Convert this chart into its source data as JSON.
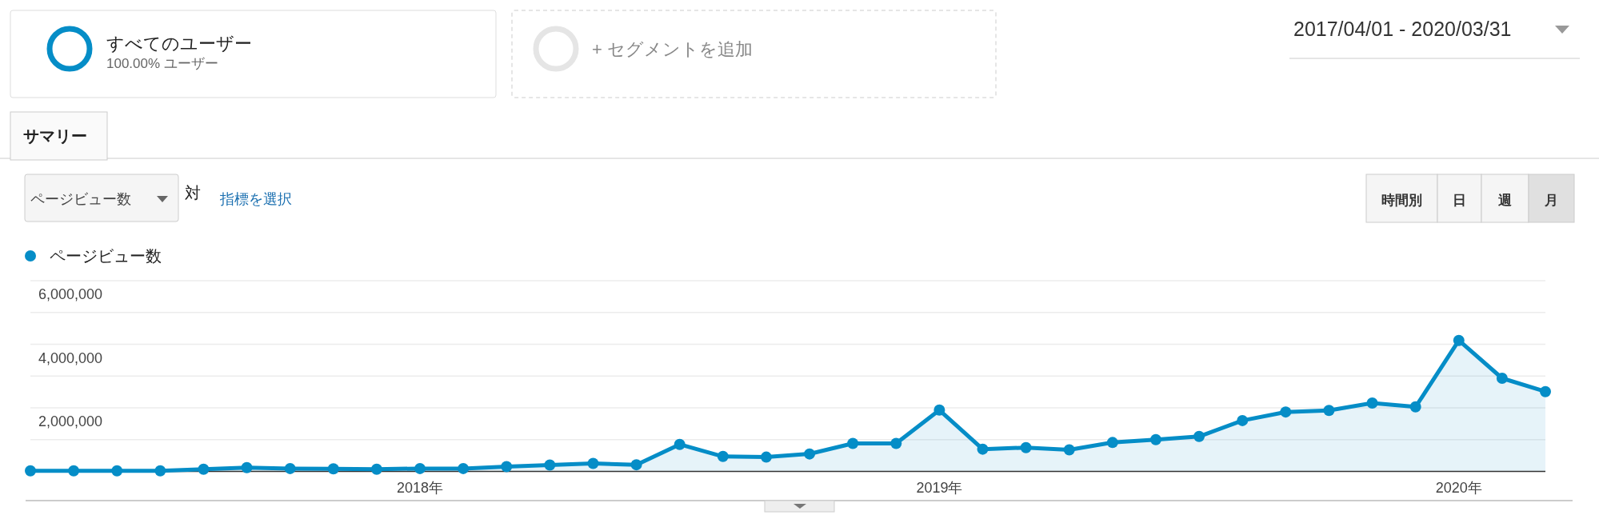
{
  "chart_data": {
    "type": "area",
    "legend": "top left",
    "marker": "circle",
    "grid": "y",
    "x": [
      "2017-04",
      "2017-05",
      "2017-06",
      "2017-07",
      "2017-08",
      "2017-09",
      "2017-10",
      "2017-11",
      "2017-12",
      "2018-01",
      "2018-02",
      "2018-03",
      "2018-04",
      "2018-05",
      "2018-06",
      "2018-07",
      "2018-08",
      "2018-09",
      "2018-10",
      "2018-11",
      "2018-12",
      "2019-01",
      "2019-02",
      "2019-03",
      "2019-04",
      "2019-05",
      "2019-06",
      "2019-07",
      "2019-08",
      "2019-09",
      "2019-10",
      "2019-11",
      "2019-12",
      "2020-01",
      "2020-02",
      "2020-03"
    ],
    "series": [
      {
        "name": "ページビュー数",
        "color": "#058dc7",
        "values": [
          20000,
          20000,
          20000,
          20000,
          70000,
          120000,
          90000,
          80000,
          70000,
          90000,
          90000,
          150000,
          200000,
          250000,
          210000,
          850000,
          470000,
          450000,
          550000,
          880000,
          880000,
          1930000,
          700000,
          750000,
          680000,
          910000,
          1000000,
          1100000,
          1600000,
          1870000,
          1920000,
          2150000,
          2030000,
          4120000,
          2930000,
          2510000
        ]
      }
    ],
    "xlim": [
      "2017-04",
      "2020-03"
    ],
    "xticks": [
      {
        "value": "2018-01",
        "label": "2018年"
      },
      {
        "value": "2019-01",
        "label": "2019年"
      },
      {
        "value": "2020-01",
        "label": "2020年"
      }
    ],
    "ylim": [
      0,
      6000000
    ],
    "yticks": [
      {
        "value": 0,
        "label": null
      },
      {
        "value": 1000000,
        "label": null
      },
      {
        "value": 2000000,
        "label": "2,000,000"
      },
      {
        "value": 3000000,
        "label": null
      },
      {
        "value": 4000000,
        "label": "4,000,000"
      },
      {
        "value": 5000000,
        "label": null
      },
      {
        "value": 6000000,
        "label": "6,000,000"
      }
    ],
    "annotations": [
      "すべてのユーザー",
      "100.00% ユーザー",
      "+ セグメントを追加",
      "2017/04/01 - 2020/03/31",
      "サマリー",
      "ページビュー数",
      "対",
      "指標を選択",
      "時間別",
      "日",
      "週",
      "月"
    ]
  }
}
